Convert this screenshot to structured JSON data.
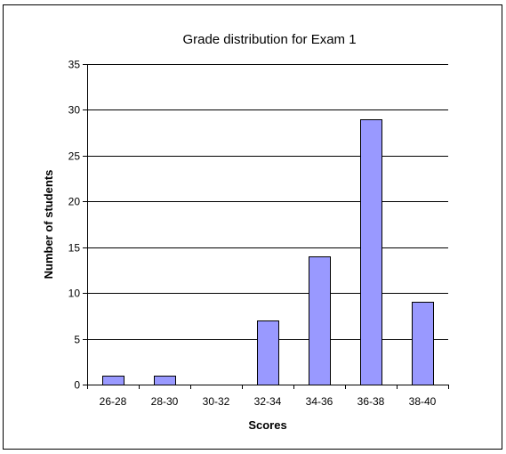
{
  "chart_data": {
    "type": "bar",
    "title": "Grade distribution for Exam 1",
    "xlabel": "Scores",
    "ylabel": "Number of students",
    "categories": [
      "26-28",
      "28-30",
      "30-32",
      "32-34",
      "34-36",
      "36-38",
      "38-40"
    ],
    "values": [
      1,
      1,
      0,
      7,
      14,
      29,
      9
    ],
    "ylim": [
      0,
      35
    ],
    "yticks": [
      "0",
      "5",
      "10",
      "15",
      "20",
      "25",
      "30",
      "35"
    ],
    "grid": "horizontal",
    "legend": "none",
    "colors": {
      "bar_fill": "#9999ff",
      "bar_stroke": "#000000",
      "gridline": "#000000",
      "background": "#ffffff"
    }
  }
}
